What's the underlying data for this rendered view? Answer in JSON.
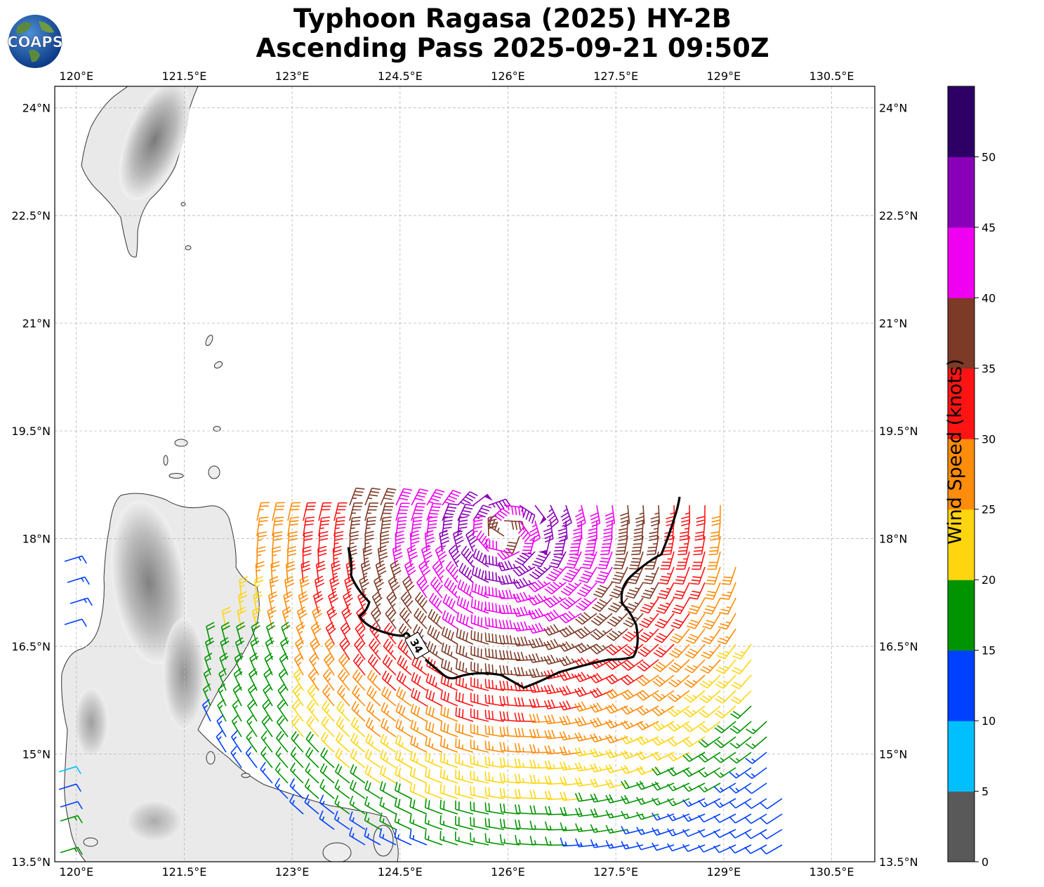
{
  "title": {
    "line1": "Typhoon Ragasa (2025) HY-2B",
    "line2": "Ascending Pass 2025-09-21 09:50Z"
  },
  "logo": {
    "text": "COAPS",
    "icon": "globe-logo-icon"
  },
  "map": {
    "lon_ticks": [
      "120°E",
      "121.5°E",
      "123°E",
      "124.5°E",
      "126°E",
      "127.5°E",
      "129°E",
      "130.5°E"
    ],
    "lat_ticks": [
      "13.5°N",
      "15°N",
      "16.5°N",
      "18°N",
      "19.5°N",
      "21°N",
      "22.5°N",
      "24°N"
    ],
    "lon_range": [
      119.7,
      131.1
    ],
    "lat_range": [
      13.5,
      24.3
    ],
    "grid": true,
    "contour_label": "34"
  },
  "colorbar": {
    "label": "Wind Speed (knots)",
    "ticks": [
      "0",
      "5",
      "10",
      "15",
      "20",
      "25",
      "30",
      "35",
      "40",
      "45",
      "50"
    ],
    "colors": [
      "#595959",
      "#00bfff",
      "#0040ff",
      "#009400",
      "#ffd510",
      "#ff8c0a",
      "#ff1414",
      "#7d3a26",
      "#f000f0",
      "#8a00b8",
      "#2e0066"
    ]
  }
}
